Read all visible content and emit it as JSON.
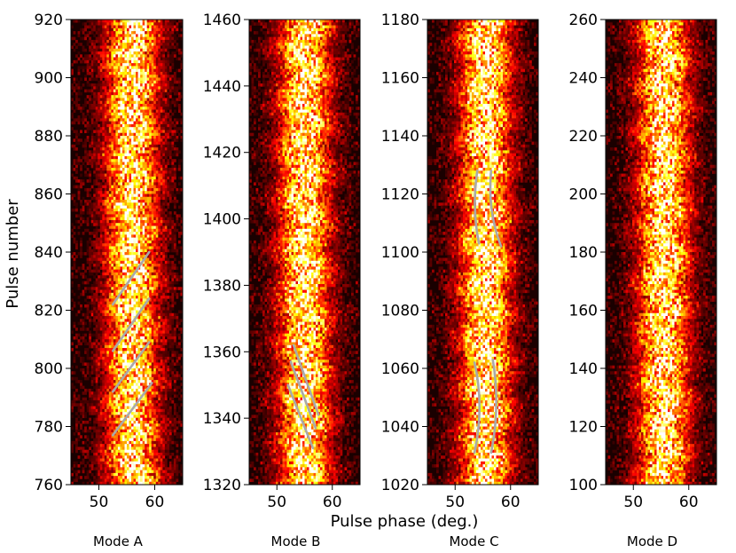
{
  "figure": {
    "ylabel": "Pulse number",
    "xlabel": "Pulse phase (deg.)"
  },
  "chart_data": [
    {
      "type": "heatmap",
      "mode": "Mode A",
      "xlim": [
        45,
        65
      ],
      "ylim": [
        760,
        920
      ],
      "xticks": [
        50,
        60
      ],
      "yticks": [
        760,
        780,
        800,
        820,
        840,
        860,
        880,
        900,
        920
      ],
      "colormap": "hot",
      "emission_center_deg": 56,
      "drift_tracks": [
        {
          "x": [
            52.5,
            59
          ],
          "y": [
            822,
            840
          ]
        },
        {
          "x": [
            52.5,
            59
          ],
          "y": [
            806,
            824
          ]
        },
        {
          "x": [
            52.5,
            59
          ],
          "y": [
            792,
            809
          ]
        },
        {
          "x": [
            52.5,
            59.5
          ],
          "y": [
            777,
            795
          ]
        }
      ]
    },
    {
      "type": "heatmap",
      "mode": "Mode B",
      "xlim": [
        45,
        65
      ],
      "ylim": [
        1320,
        1460
      ],
      "xticks": [
        50,
        60
      ],
      "yticks": [
        1320,
        1340,
        1360,
        1380,
        1400,
        1420,
        1440,
        1460
      ],
      "colormap": "hot",
      "emission_center_deg": 55,
      "drift_tracks": [
        {
          "x": [
            53,
            57.5
          ],
          "y": [
            1362,
            1341
          ]
        },
        {
          "x": [
            52.5,
            57
          ],
          "y": [
            1357,
            1337
          ]
        },
        {
          "x": [
            52,
            56.5
          ],
          "y": [
            1350,
            1331
          ]
        }
      ]
    },
    {
      "type": "heatmap",
      "mode": "Mode C",
      "xlim": [
        45,
        65
      ],
      "ylim": [
        1020,
        1180
      ],
      "xticks": [
        50,
        60
      ],
      "yticks": [
        1020,
        1040,
        1060,
        1080,
        1100,
        1120,
        1140,
        1160,
        1180
      ],
      "colormap": "hot",
      "emission_center_deg": 55.5,
      "drift_tracks": [
        {
          "x": [
            54,
            53,
            54.3
          ],
          "y": [
            1128,
            1115,
            1103
          ]
        },
        {
          "x": [
            56.5,
            55.8,
            58.3
          ],
          "y": [
            1128,
            1114,
            1102
          ]
        },
        {
          "x": [
            53.5,
            55.3,
            53.5
          ],
          "y": [
            1062,
            1047,
            1031
          ]
        },
        {
          "x": [
            56.8,
            58.2,
            56.5
          ],
          "y": [
            1063,
            1047,
            1031
          ]
        }
      ]
    },
    {
      "type": "heatmap",
      "mode": "Mode D",
      "xlim": [
        45,
        65
      ],
      "ylim": [
        100,
        260
      ],
      "xticks": [
        50,
        60
      ],
      "yticks": [
        100,
        120,
        140,
        160,
        180,
        200,
        220,
        240,
        260
      ],
      "colormap": "hot",
      "emission_center_deg": 55.5,
      "drift_tracks": []
    }
  ]
}
